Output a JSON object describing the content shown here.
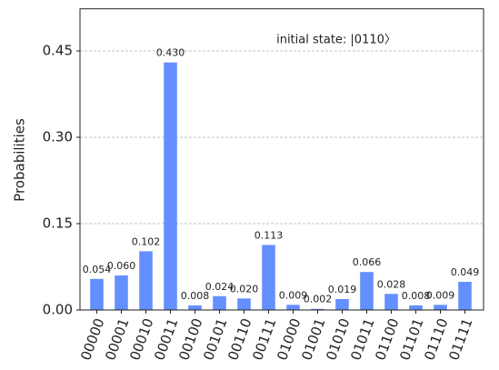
{
  "chart_data": {
    "type": "bar",
    "annotation": "initial state: |0110〉",
    "y_label": "Probabilities",
    "categories": [
      "00000",
      "00001",
      "00010",
      "00011",
      "00100",
      "00101",
      "00110",
      "00111",
      "01000",
      "01001",
      "01010",
      "01011",
      "01100",
      "01101",
      "01110",
      "01111"
    ],
    "values": [
      0.054,
      0.06,
      0.102,
      0.43,
      0.008,
      0.024,
      0.02,
      0.113,
      0.009,
      0.002,
      0.019,
      0.066,
      0.028,
      0.008,
      0.009,
      0.049
    ],
    "value_labels": [
      "0.054",
      "0.060",
      "0.102",
      "0.430",
      "0.008",
      "0.024",
      "0.020",
      "0.113",
      "0.009",
      "0.002",
      "0.019",
      "0.066",
      "0.028",
      "0.008",
      "0.009",
      "0.049"
    ],
    "color": "#648fff",
    "ylim": [
      0,
      0.52
    ],
    "yticks": [
      {
        "value": 0,
        "label": "0.00"
      },
      {
        "value": 0.15,
        "label": "0.15"
      },
      {
        "value": 0.3,
        "label": "0.30"
      },
      {
        "value": 0.45,
        "label": "0.45"
      }
    ],
    "grid": true
  }
}
